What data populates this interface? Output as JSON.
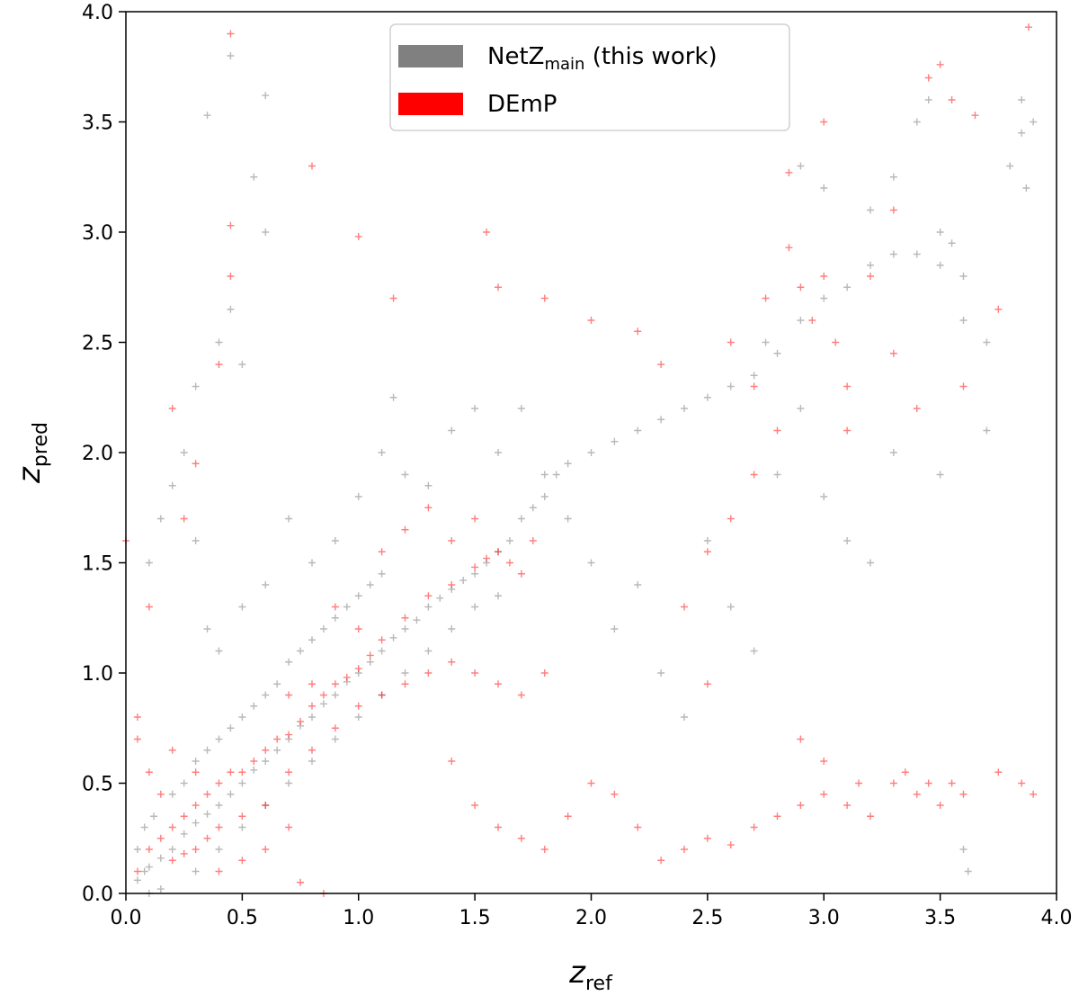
{
  "chart_data": {
    "type": "scatter",
    "title": "",
    "xlabel": {
      "main": "z",
      "sub": "ref"
    },
    "ylabel": {
      "main": "z",
      "sub": "pred"
    },
    "xlim": [
      0.0,
      4.0
    ],
    "ylim": [
      0.0,
      4.0
    ],
    "xticks": [
      "0.0",
      "0.5",
      "1.0",
      "1.5",
      "2.0",
      "2.5",
      "3.0",
      "3.5",
      "4.0"
    ],
    "yticks": [
      "0.0",
      "0.5",
      "1.0",
      "1.5",
      "2.0",
      "2.5",
      "3.0",
      "3.5",
      "4.0"
    ],
    "grid": false,
    "legend_position": "top-center",
    "marker": "+",
    "series": [
      {
        "name": {
          "main": "NetZ",
          "sub": "main",
          "suffix": " (this work)"
        },
        "color": "#808080",
        "points": [
          [
            0.05,
            0.06
          ],
          [
            0.08,
            0.1
          ],
          [
            0.1,
            0.12
          ],
          [
            0.15,
            0.16
          ],
          [
            0.2,
            0.2
          ],
          [
            0.25,
            0.27
          ],
          [
            0.3,
            0.32
          ],
          [
            0.35,
            0.36
          ],
          [
            0.4,
            0.4
          ],
          [
            0.45,
            0.45
          ],
          [
            0.5,
            0.5
          ],
          [
            0.55,
            0.56
          ],
          [
            0.6,
            0.6
          ],
          [
            0.65,
            0.65
          ],
          [
            0.7,
            0.7
          ],
          [
            0.75,
            0.76
          ],
          [
            0.8,
            0.8
          ],
          [
            0.85,
            0.86
          ],
          [
            0.9,
            0.9
          ],
          [
            0.95,
            0.96
          ],
          [
            1.0,
            1.0
          ],
          [
            1.05,
            1.05
          ],
          [
            1.1,
            1.1
          ],
          [
            1.15,
            1.16
          ],
          [
            1.2,
            1.2
          ],
          [
            1.25,
            1.24
          ],
          [
            1.3,
            1.3
          ],
          [
            1.35,
            1.34
          ],
          [
            1.4,
            1.38
          ],
          [
            1.45,
            1.42
          ],
          [
            1.5,
            1.45
          ],
          [
            1.55,
            1.5
          ],
          [
            1.6,
            1.55
          ],
          [
            1.65,
            1.6
          ],
          [
            1.7,
            1.7
          ],
          [
            1.75,
            1.75
          ],
          [
            1.8,
            1.8
          ],
          [
            1.85,
            1.9
          ],
          [
            1.9,
            1.95
          ],
          [
            2.0,
            2.0
          ],
          [
            2.1,
            2.05
          ],
          [
            2.2,
            2.1
          ],
          [
            2.3,
            2.15
          ],
          [
            2.4,
            2.2
          ],
          [
            2.5,
            2.25
          ],
          [
            2.6,
            2.3
          ],
          [
            2.7,
            2.35
          ],
          [
            2.75,
            2.5
          ],
          [
            2.8,
            2.45
          ],
          [
            2.9,
            2.6
          ],
          [
            3.0,
            2.7
          ],
          [
            3.1,
            2.75
          ],
          [
            3.2,
            2.85
          ],
          [
            3.3,
            2.9
          ],
          [
            3.4,
            2.9
          ],
          [
            3.5,
            2.85
          ],
          [
            3.6,
            2.6
          ],
          [
            3.7,
            2.5
          ],
          [
            3.8,
            3.3
          ],
          [
            3.85,
            3.45
          ],
          [
            3.87,
            3.2
          ],
          [
            3.9,
            3.5
          ],
          [
            3.85,
            3.6
          ],
          [
            0.45,
            3.8
          ],
          [
            0.6,
            3.62
          ],
          [
            0.35,
            3.53
          ],
          [
            0.55,
            3.25
          ],
          [
            0.6,
            3.0
          ],
          [
            0.45,
            2.65
          ],
          [
            0.4,
            2.5
          ],
          [
            0.5,
            2.4
          ],
          [
            0.3,
            2.3
          ],
          [
            0.25,
            2.0
          ],
          [
            0.2,
            1.85
          ],
          [
            0.15,
            1.7
          ],
          [
            0.1,
            1.5
          ],
          [
            0.3,
            1.6
          ],
          [
            0.35,
            1.2
          ],
          [
            0.4,
            1.1
          ],
          [
            0.5,
            1.3
          ],
          [
            0.6,
            1.4
          ],
          [
            0.7,
            1.7
          ],
          [
            0.8,
            1.5
          ],
          [
            0.9,
            1.6
          ],
          [
            1.0,
            1.8
          ],
          [
            1.1,
            2.0
          ],
          [
            1.15,
            2.25
          ],
          [
            1.2,
            1.9
          ],
          [
            1.3,
            1.85
          ],
          [
            1.4,
            2.1
          ],
          [
            1.5,
            2.2
          ],
          [
            1.6,
            2.0
          ],
          [
            1.7,
            2.2
          ],
          [
            1.8,
            1.9
          ],
          [
            1.9,
            1.7
          ],
          [
            2.0,
            1.5
          ],
          [
            2.1,
            1.2
          ],
          [
            2.2,
            1.4
          ],
          [
            2.3,
            1.0
          ],
          [
            2.4,
            0.8
          ],
          [
            2.5,
            1.6
          ],
          [
            2.6,
            1.3
          ],
          [
            2.7,
            1.1
          ],
          [
            2.8,
            1.9
          ],
          [
            2.9,
            2.2
          ],
          [
            3.0,
            1.8
          ],
          [
            3.1,
            1.6
          ],
          [
            3.2,
            1.5
          ],
          [
            3.3,
            2.0
          ],
          [
            3.5,
            1.9
          ],
          [
            3.6,
            0.2
          ],
          [
            3.62,
            0.1
          ],
          [
            0.1,
            0.0
          ],
          [
            0.15,
            0.02
          ],
          [
            0.05,
            0.2
          ],
          [
            0.08,
            0.3
          ],
          [
            0.12,
            0.35
          ],
          [
            0.2,
            0.45
          ],
          [
            0.25,
            0.5
          ],
          [
            0.3,
            0.6
          ],
          [
            0.35,
            0.65
          ],
          [
            0.4,
            0.7
          ],
          [
            0.45,
            0.75
          ],
          [
            0.5,
            0.8
          ],
          [
            0.55,
            0.85
          ],
          [
            0.6,
            0.9
          ],
          [
            0.65,
            0.95
          ],
          [
            0.7,
            1.05
          ],
          [
            0.75,
            1.1
          ],
          [
            0.8,
            1.15
          ],
          [
            0.85,
            1.2
          ],
          [
            0.9,
            1.25
          ],
          [
            0.95,
            1.3
          ],
          [
            1.0,
            1.35
          ],
          [
            1.05,
            1.4
          ],
          [
            1.1,
            1.45
          ],
          [
            0.3,
            0.1
          ],
          [
            0.4,
            0.2
          ],
          [
            0.5,
            0.3
          ],
          [
            0.6,
            0.4
          ],
          [
            0.7,
            0.5
          ],
          [
            0.8,
            0.6
          ],
          [
            0.9,
            0.7
          ],
          [
            1.0,
            0.8
          ],
          [
            1.1,
            0.9
          ],
          [
            1.2,
            1.0
          ],
          [
            1.3,
            1.1
          ],
          [
            1.4,
            1.2
          ],
          [
            1.5,
            1.3
          ],
          [
            1.6,
            1.35
          ],
          [
            3.45,
            3.6
          ],
          [
            3.4,
            3.5
          ],
          [
            3.0,
            3.2
          ],
          [
            3.2,
            3.1
          ],
          [
            3.3,
            3.25
          ],
          [
            2.9,
            3.3
          ],
          [
            3.5,
            3.0
          ],
          [
            3.7,
            2.1
          ],
          [
            3.6,
            2.8
          ],
          [
            3.55,
            2.95
          ]
        ]
      },
      {
        "name": {
          "main": "DEmP",
          "sub": "",
          "suffix": ""
        },
        "color": "#ff0000",
        "points": [
          [
            0.05,
            0.1
          ],
          [
            0.1,
            0.2
          ],
          [
            0.15,
            0.25
          ],
          [
            0.2,
            0.3
          ],
          [
            0.25,
            0.35
          ],
          [
            0.3,
            0.4
          ],
          [
            0.35,
            0.45
          ],
          [
            0.4,
            0.5
          ],
          [
            0.45,
            0.55
          ],
          [
            0.5,
            0.55
          ],
          [
            0.55,
            0.6
          ],
          [
            0.6,
            0.65
          ],
          [
            0.65,
            0.7
          ],
          [
            0.7,
            0.72
          ],
          [
            0.75,
            0.78
          ],
          [
            0.8,
            0.85
          ],
          [
            0.85,
            0.9
          ],
          [
            0.9,
            0.95
          ],
          [
            0.95,
            0.98
          ],
          [
            1.0,
            1.02
          ],
          [
            1.05,
            1.08
          ],
          [
            1.1,
            1.15
          ],
          [
            1.2,
            1.25
          ],
          [
            1.3,
            1.35
          ],
          [
            1.4,
            1.4
          ],
          [
            1.5,
            1.48
          ],
          [
            1.55,
            1.52
          ],
          [
            1.6,
            1.55
          ],
          [
            1.65,
            1.5
          ],
          [
            1.7,
            1.45
          ],
          [
            1.75,
            1.6
          ],
          [
            1.5,
            1.7
          ],
          [
            1.4,
            1.6
          ],
          [
            1.3,
            1.75
          ],
          [
            1.2,
            1.65
          ],
          [
            1.1,
            1.55
          ],
          [
            1.0,
            1.2
          ],
          [
            0.9,
            1.3
          ],
          [
            0.8,
            0.95
          ],
          [
            0.7,
            0.9
          ],
          [
            0.2,
            0.15
          ],
          [
            0.25,
            0.18
          ],
          [
            0.3,
            0.2
          ],
          [
            0.35,
            0.25
          ],
          [
            0.4,
            0.3
          ],
          [
            0.5,
            0.35
          ],
          [
            0.6,
            0.4
          ],
          [
            0.7,
            0.55
          ],
          [
            0.8,
            0.65
          ],
          [
            0.9,
            0.75
          ],
          [
            1.0,
            0.85
          ],
          [
            1.1,
            0.9
          ],
          [
            1.2,
            0.95
          ],
          [
            1.3,
            1.0
          ],
          [
            1.4,
            1.05
          ],
          [
            1.5,
            1.0
          ],
          [
            1.6,
            0.95
          ],
          [
            1.7,
            0.9
          ],
          [
            1.8,
            1.0
          ],
          [
            1.4,
            0.6
          ],
          [
            1.5,
            0.4
          ],
          [
            1.6,
            0.3
          ],
          [
            1.7,
            0.25
          ],
          [
            1.8,
            0.2
          ],
          [
            1.9,
            0.35
          ],
          [
            2.0,
            0.5
          ],
          [
            2.1,
            0.45
          ],
          [
            2.2,
            0.3
          ],
          [
            2.3,
            0.15
          ],
          [
            2.4,
            0.2
          ],
          [
            2.5,
            0.25
          ],
          [
            2.6,
            0.22
          ],
          [
            2.7,
            0.3
          ],
          [
            2.8,
            0.35
          ],
          [
            2.9,
            0.4
          ],
          [
            3.0,
            0.45
          ],
          [
            3.1,
            0.4
          ],
          [
            3.15,
            0.5
          ],
          [
            3.2,
            0.35
          ],
          [
            3.3,
            0.5
          ],
          [
            3.35,
            0.55
          ],
          [
            3.4,
            0.45
          ],
          [
            3.45,
            0.5
          ],
          [
            3.5,
            0.4
          ],
          [
            3.55,
            0.5
          ],
          [
            3.6,
            0.45
          ],
          [
            3.75,
            0.55
          ],
          [
            3.85,
            0.5
          ],
          [
            3.9,
            0.45
          ],
          [
            3.0,
            0.6
          ],
          [
            2.9,
            0.7
          ],
          [
            2.5,
            0.95
          ],
          [
            2.4,
            1.3
          ],
          [
            2.5,
            1.55
          ],
          [
            2.6,
            1.7
          ],
          [
            2.7,
            1.9
          ],
          [
            2.8,
            2.1
          ],
          [
            2.7,
            2.3
          ],
          [
            2.6,
            2.5
          ],
          [
            2.75,
            2.7
          ],
          [
            2.85,
            2.93
          ],
          [
            2.9,
            2.75
          ],
          [
            2.95,
            2.6
          ],
          [
            3.0,
            2.8
          ],
          [
            3.05,
            2.5
          ],
          [
            3.1,
            2.3
          ],
          [
            2.2,
            2.55
          ],
          [
            2.3,
            2.4
          ],
          [
            2.0,
            2.6
          ],
          [
            1.8,
            2.7
          ],
          [
            1.6,
            2.75
          ],
          [
            0.45,
            3.03
          ],
          [
            0.45,
            2.8
          ],
          [
            0.4,
            2.4
          ],
          [
            0.2,
            2.2
          ],
          [
            0.3,
            1.95
          ],
          [
            0.25,
            1.7
          ],
          [
            0.1,
            1.3
          ],
          [
            0.05,
            0.8
          ],
          [
            0.0,
            1.6
          ],
          [
            0.05,
            0.7
          ],
          [
            0.1,
            0.55
          ],
          [
            0.15,
            0.45
          ],
          [
            0.2,
            0.65
          ],
          [
            0.3,
            0.55
          ],
          [
            0.4,
            0.1
          ],
          [
            0.5,
            0.15
          ],
          [
            0.6,
            0.2
          ],
          [
            0.7,
            0.3
          ],
          [
            0.75,
            0.05
          ],
          [
            0.85,
            0.0
          ],
          [
            1.0,
            2.98
          ],
          [
            1.15,
            2.7
          ],
          [
            1.55,
            3.0
          ],
          [
            0.8,
            3.3
          ],
          [
            0.45,
            3.9
          ],
          [
            2.85,
            3.27
          ],
          [
            3.0,
            3.5
          ],
          [
            3.5,
            3.76
          ],
          [
            3.45,
            3.7
          ],
          [
            3.88,
            3.93
          ],
          [
            3.55,
            3.6
          ],
          [
            3.65,
            3.53
          ],
          [
            3.3,
            3.1
          ],
          [
            3.2,
            2.8
          ],
          [
            3.4,
            2.2
          ],
          [
            3.6,
            2.3
          ],
          [
            3.75,
            2.65
          ],
          [
            3.3,
            2.45
          ],
          [
            3.1,
            2.1
          ]
        ]
      }
    ]
  }
}
